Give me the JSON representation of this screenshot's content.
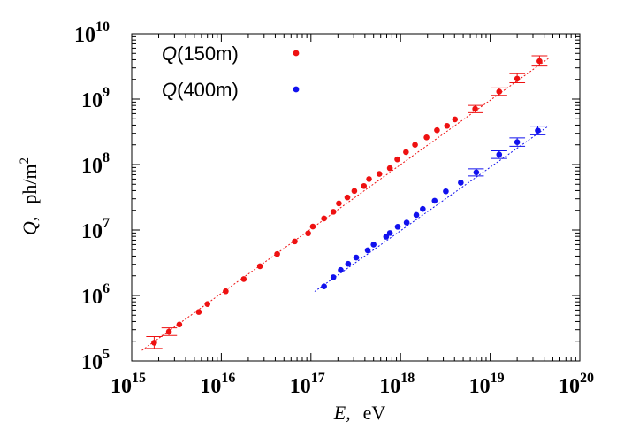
{
  "chart_data": {
    "type": "scatter",
    "title": "",
    "xlabel": {
      "symbol": "E,",
      "unit": "eV"
    },
    "ylabel": {
      "symbol": "Q,",
      "unit": "ph/m",
      "unit_sup": "2"
    },
    "xscale": "log",
    "yscale": "log",
    "xlim": [
      1000000000000000.0,
      1e+20
    ],
    "ylim": [
      100000.0,
      10000000000.0
    ],
    "grid": false,
    "legend_position": "top-left",
    "x_ticks": [
      {
        "base": "10",
        "exp": "15"
      },
      {
        "base": "10",
        "exp": "16"
      },
      {
        "base": "10",
        "exp": "17"
      },
      {
        "base": "10",
        "exp": "18"
      },
      {
        "base": "10",
        "exp": "19"
      },
      {
        "base": "10",
        "exp": "20"
      }
    ],
    "y_ticks": [
      {
        "base": "10",
        "exp": "5"
      },
      {
        "base": "10",
        "exp": "6"
      },
      {
        "base": "10",
        "exp": "7"
      },
      {
        "base": "10",
        "exp": "8"
      },
      {
        "base": "10",
        "exp": "9"
      },
      {
        "base": "10",
        "exp": "10"
      }
    ],
    "series": [
      {
        "name": "Q",
        "name_suffix": "(150m)",
        "color": "#ee1111",
        "points": [
          {
            "x": 1780000000000000.0,
            "y": 190000.0,
            "ylo": 155000.0,
            "yhi": 235000.0,
            "xlo": 1450000000000000.0,
            "xhi": 2200000000000000.0
          },
          {
            "x": 2600000000000000.0,
            "y": 280000.0,
            "ylo": 245000.0,
            "yhi": 320000.0,
            "xlo": 2150000000000000.0,
            "xhi": 3200000000000000.0
          },
          {
            "x": 3400000000000000.0,
            "y": 360000.0
          },
          {
            "x": 5600000000000000.0,
            "y": 560000.0
          },
          {
            "x": 7000000000000000.0,
            "y": 740000.0
          },
          {
            "x": 1.12e+16,
            "y": 1160000.0
          },
          {
            "x": 1.78e+16,
            "y": 1780000.0
          },
          {
            "x": 2.7e+16,
            "y": 2800000.0
          },
          {
            "x": 4.2e+16,
            "y": 4300000.0
          },
          {
            "x": 6.6e+16,
            "y": 6700000.0
          },
          {
            "x": 9.3e+16,
            "y": 8900000.0
          },
          {
            "x": 1.05e+17,
            "y": 11300000.0
          },
          {
            "x": 1.4e+17,
            "y": 15000000.0
          },
          {
            "x": 1.78e+17,
            "y": 19000000.0
          },
          {
            "x": 2.05e+17,
            "y": 25500000.0
          },
          {
            "x": 2.55e+17,
            "y": 31500000.0
          },
          {
            "x": 3.05e+17,
            "y": 39500000.0
          },
          {
            "x": 3.9e+17,
            "y": 47000000.0
          },
          {
            "x": 4.45e+17,
            "y": 60000000.0
          },
          {
            "x": 5.8e+17,
            "y": 72000000.0
          },
          {
            "x": 7.6e+17,
            "y": 88000000.0
          },
          {
            "x": 9.2e+17,
            "y": 120000000.0
          },
          {
            "x": 1.15e+18,
            "y": 155000000.0
          },
          {
            "x": 1.45e+18,
            "y": 200000000.0
          },
          {
            "x": 1.95e+18,
            "y": 260000000.0
          },
          {
            "x": 2.55e+18,
            "y": 335000000.0
          },
          {
            "x": 3.3e+18,
            "y": 390000000.0
          },
          {
            "x": 4.05e+18,
            "y": 490000000.0
          },
          {
            "x": 6.8e+18,
            "y": 710000000.0,
            "ylo": 620000000.0,
            "yhi": 800000000.0,
            "xlo": 5.6e+18,
            "xhi": 8.3e+18
          },
          {
            "x": 1.26e+19,
            "y": 1300000000.0,
            "ylo": 1140000000.0,
            "yhi": 1480000000.0,
            "xlo": 1.03e+19,
            "xhi": 1.55e+19
          },
          {
            "x": 2e+19,
            "y": 2050000000.0,
            "ylo": 1780000000.0,
            "yhi": 2450000000.0,
            "xlo": 1.64e+19,
            "xhi": 2.45e+19
          },
          {
            "x": 3.55e+19,
            "y": 3800000000.0,
            "ylo": 3200000000.0,
            "yhi": 4600000000.0,
            "xlo": 2.9e+19,
            "xhi": 4.35e+19
          }
        ],
        "fit": {
          "x": [
            1300000000000000.0,
            4.6e+19
          ],
          "y": [
            145000.0,
            4300000000.0
          ]
        }
      },
      {
        "name": "Q",
        "name_suffix": "(400m)",
        "color": "#1111ee",
        "points": [
          {
            "x": 1.4e+17,
            "y": 1380000.0
          },
          {
            "x": 1.78e+17,
            "y": 1900000.0
          },
          {
            "x": 2.15e+17,
            "y": 2450000.0
          },
          {
            "x": 2.6e+17,
            "y": 3050000.0
          },
          {
            "x": 3.2e+17,
            "y": 3800000.0
          },
          {
            "x": 4.3e+17,
            "y": 4900000.0
          },
          {
            "x": 5e+17,
            "y": 6000000.0
          },
          {
            "x": 6.9e+17,
            "y": 7900000.0
          },
          {
            "x": 7.6e+17,
            "y": 9000000.0
          },
          {
            "x": 9.3e+17,
            "y": 11200000.0
          },
          {
            "x": 1.17e+18,
            "y": 13000000.0
          },
          {
            "x": 1.5e+18,
            "y": 17000000.0
          },
          {
            "x": 1.77e+18,
            "y": 21000000.0
          },
          {
            "x": 2.4e+18,
            "y": 28000000.0
          },
          {
            "x": 3.2e+18,
            "y": 39000000.0
          },
          {
            "x": 4.7e+18,
            "y": 53000000.0
          },
          {
            "x": 7e+18,
            "y": 76000000.0,
            "ylo": 67000000.0,
            "yhi": 86000000.0,
            "xlo": 5.7e+18,
            "xhi": 8.5e+18
          },
          {
            "x": 1.26e+19,
            "y": 142000000.0,
            "ylo": 124000000.0,
            "yhi": 162000000.0,
            "xlo": 1.03e+19,
            "xhi": 1.55e+19
          },
          {
            "x": 2e+19,
            "y": 220000000.0,
            "ylo": 190000000.0,
            "yhi": 255000000.0,
            "xlo": 1.64e+19,
            "xhi": 2.45e+19
          },
          {
            "x": 3.4e+19,
            "y": 330000000.0,
            "ylo": 285000000.0,
            "yhi": 385000000.0,
            "xlo": 2.8e+19,
            "xhi": 4.15e+19
          }
        ],
        "fit": {
          "x": [
            1.1e+17,
            4.5e+19
          ],
          "y": [
            1150000.0,
            390000000.0
          ]
        }
      }
    ]
  }
}
